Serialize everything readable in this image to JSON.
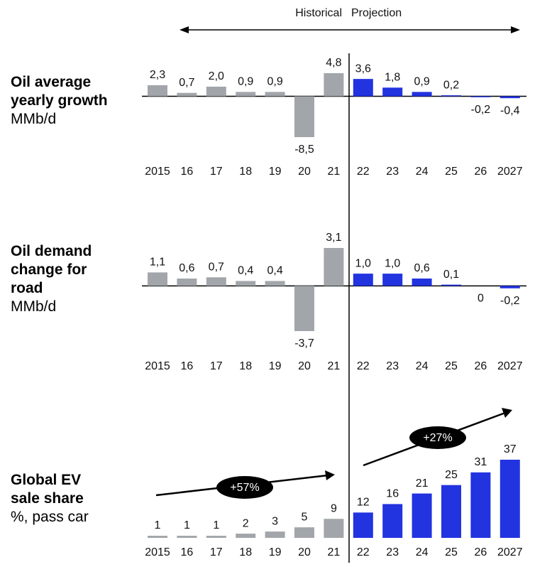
{
  "header": {
    "historical": "Historical",
    "projection": "Projection"
  },
  "chart_data": [
    {
      "type": "bar",
      "title": "Oil average yearly growth",
      "unit": "MMb/d",
      "categories": [
        "2015",
        "16",
        "17",
        "18",
        "19",
        "20",
        "21",
        "22",
        "23",
        "24",
        "25",
        "26",
        "2027"
      ],
      "values": [
        2.3,
        0.7,
        2.0,
        0.9,
        0.9,
        -8.5,
        4.8,
        3.6,
        1.8,
        0.9,
        0.2,
        -0.2,
        -0.4
      ],
      "value_labels": [
        "2,3",
        "0,7",
        "2,0",
        "0,9",
        "0,9",
        "-8,5",
        "4,8",
        "3,6",
        "1,8",
        "0,9",
        "0,2",
        "-0,2",
        "-0,4"
      ],
      "colors": [
        "#a2a6aa",
        "#a2a6aa",
        "#a2a6aa",
        "#a2a6aa",
        "#a2a6aa",
        "#a2a6aa",
        "#a2a6aa",
        "#2233e0",
        "#2233e0",
        "#2233e0",
        "#2233e0",
        "#2233e0",
        "#2233e0"
      ]
    },
    {
      "type": "bar",
      "title": "Oil demand change for road",
      "unit": "MMb/d",
      "categories": [
        "2015",
        "16",
        "17",
        "18",
        "19",
        "20",
        "21",
        "22",
        "23",
        "24",
        "25",
        "26",
        "2027"
      ],
      "values": [
        1.1,
        0.6,
        0.7,
        0.4,
        0.4,
        -3.7,
        3.1,
        1.0,
        1.0,
        0.6,
        0.1,
        0,
        -0.2
      ],
      "value_labels": [
        "1,1",
        "0,6",
        "0,7",
        "0,4",
        "0,4",
        "-3,7",
        "3,1",
        "1,0",
        "1,0",
        "0,6",
        "0,1",
        "0",
        "-0,2"
      ],
      "colors": [
        "#a2a6aa",
        "#a2a6aa",
        "#a2a6aa",
        "#a2a6aa",
        "#a2a6aa",
        "#a2a6aa",
        "#a2a6aa",
        "#2233e0",
        "#2233e0",
        "#2233e0",
        "#2233e0",
        "#2233e0",
        "#2233e0"
      ]
    },
    {
      "type": "bar",
      "title": "Global EV sale share",
      "unit": "%, pass car",
      "categories": [
        "2015",
        "16",
        "17",
        "18",
        "19",
        "20",
        "21",
        "22",
        "23",
        "24",
        "25",
        "26",
        "2027"
      ],
      "values": [
        1,
        1,
        1,
        2,
        3,
        5,
        9,
        12,
        16,
        21,
        25,
        31,
        37
      ],
      "colors": [
        "#a2a6aa",
        "#a2a6aa",
        "#a2a6aa",
        "#a2a6aa",
        "#a2a6aa",
        "#a2a6aa",
        "#a2a6aa",
        "#2233e0",
        "#2233e0",
        "#2233e0",
        "#2233e0",
        "#2233e0",
        "#2233e0"
      ],
      "annotations": [
        "+57%",
        "+27%"
      ]
    }
  ]
}
